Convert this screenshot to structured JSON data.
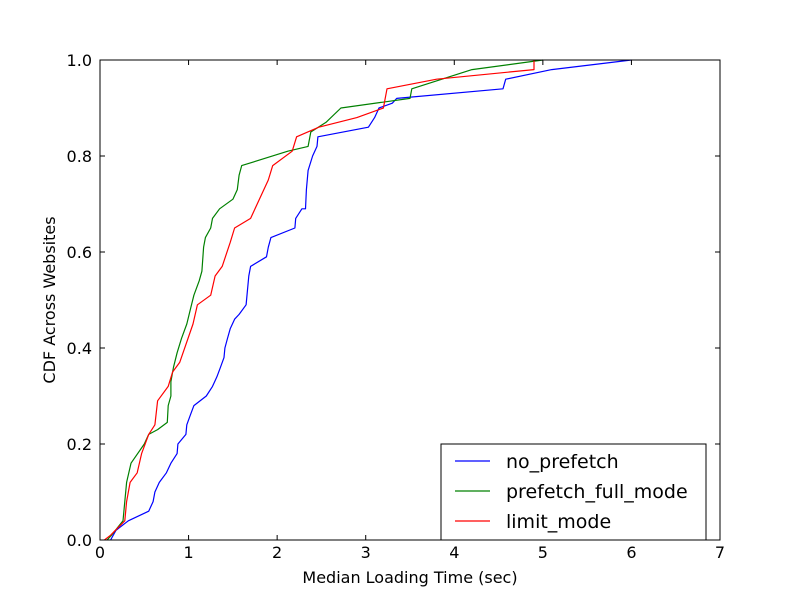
{
  "chart_data": {
    "type": "line",
    "title": "",
    "xlabel": "Median Loading Time (sec)",
    "ylabel": "CDF Across Websites",
    "xlim": [
      0,
      7
    ],
    "ylim": [
      0,
      1.0
    ],
    "xticks": [
      "0",
      "1",
      "2",
      "3",
      "4",
      "5",
      "6",
      "7"
    ],
    "yticks": [
      "0.0",
      "0.2",
      "0.4",
      "0.6",
      "0.8",
      "1.0"
    ],
    "grid": false,
    "legend_position": "lower-right",
    "series": [
      {
        "name": "no_prefetch",
        "color": "#0000ff",
        "points": [
          [
            0.12,
            0
          ],
          [
            0.18,
            0.02
          ],
          [
            0.32,
            0.04
          ],
          [
            0.55,
            0.06
          ],
          [
            0.6,
            0.08
          ],
          [
            0.62,
            0.1
          ],
          [
            0.67,
            0.12
          ],
          [
            0.75,
            0.14
          ],
          [
            0.8,
            0.16
          ],
          [
            0.87,
            0.18
          ],
          [
            0.88,
            0.2
          ],
          [
            0.97,
            0.22
          ],
          [
            0.98,
            0.24
          ],
          [
            1.02,
            0.26
          ],
          [
            1.06,
            0.28
          ],
          [
            1.2,
            0.3
          ],
          [
            1.27,
            0.32
          ],
          [
            1.32,
            0.34
          ],
          [
            1.36,
            0.36
          ],
          [
            1.4,
            0.38
          ],
          [
            1.41,
            0.4
          ],
          [
            1.44,
            0.42
          ],
          [
            1.47,
            0.44
          ],
          [
            1.52,
            0.46
          ],
          [
            1.57,
            0.47
          ],
          [
            1.65,
            0.49
          ],
          [
            1.66,
            0.51
          ],
          [
            1.68,
            0.55
          ],
          [
            1.7,
            0.57
          ],
          [
            1.88,
            0.59
          ],
          [
            1.9,
            0.61
          ],
          [
            1.93,
            0.63
          ],
          [
            2.2,
            0.65
          ],
          [
            2.21,
            0.67
          ],
          [
            2.28,
            0.69
          ],
          [
            2.32,
            0.69
          ],
          [
            2.33,
            0.73
          ],
          [
            2.35,
            0.77
          ],
          [
            2.4,
            0.8
          ],
          [
            2.45,
            0.82
          ],
          [
            2.46,
            0.84
          ],
          [
            3.03,
            0.86
          ],
          [
            3.1,
            0.88
          ],
          [
            3.15,
            0.9
          ],
          [
            3.3,
            0.91
          ],
          [
            3.35,
            0.92
          ],
          [
            4.55,
            0.94
          ],
          [
            4.58,
            0.96
          ],
          [
            5.1,
            0.98
          ],
          [
            6.0,
            1.0
          ]
        ]
      },
      {
        "name": "prefetch_full_mode",
        "color": "#008000",
        "points": [
          [
            0.08,
            0
          ],
          [
            0.13,
            0.01
          ],
          [
            0.26,
            0.04
          ],
          [
            0.28,
            0.08
          ],
          [
            0.3,
            0.12
          ],
          [
            0.35,
            0.16
          ],
          [
            0.5,
            0.2
          ],
          [
            0.55,
            0.22
          ],
          [
            0.65,
            0.23
          ],
          [
            0.76,
            0.245
          ],
          [
            0.77,
            0.28
          ],
          [
            0.8,
            0.3
          ],
          [
            0.8,
            0.33
          ],
          [
            0.83,
            0.36
          ],
          [
            0.87,
            0.39
          ],
          [
            0.92,
            0.42
          ],
          [
            0.98,
            0.45
          ],
          [
            1.02,
            0.48
          ],
          [
            1.06,
            0.51
          ],
          [
            1.12,
            0.54
          ],
          [
            1.15,
            0.56
          ],
          [
            1.17,
            0.61
          ],
          [
            1.19,
            0.63
          ],
          [
            1.25,
            0.65
          ],
          [
            1.27,
            0.67
          ],
          [
            1.35,
            0.69
          ],
          [
            1.5,
            0.71
          ],
          [
            1.55,
            0.73
          ],
          [
            1.57,
            0.76
          ],
          [
            1.6,
            0.78
          ],
          [
            2.12,
            0.81
          ],
          [
            2.35,
            0.82
          ],
          [
            2.38,
            0.85
          ],
          [
            2.55,
            0.87
          ],
          [
            2.72,
            0.9
          ],
          [
            3.5,
            0.92
          ],
          [
            3.52,
            0.94
          ],
          [
            4.2,
            0.98
          ],
          [
            5.0,
            1.0
          ]
        ]
      },
      {
        "name": "limit_mode",
        "color": "#ff0000",
        "points": [
          [
            0.05,
            0
          ],
          [
            0.12,
            0.01
          ],
          [
            0.28,
            0.04
          ],
          [
            0.3,
            0.08
          ],
          [
            0.34,
            0.12
          ],
          [
            0.42,
            0.14
          ],
          [
            0.47,
            0.18
          ],
          [
            0.55,
            0.22
          ],
          [
            0.62,
            0.24
          ],
          [
            0.65,
            0.29
          ],
          [
            0.77,
            0.32
          ],
          [
            0.82,
            0.35
          ],
          [
            0.9,
            0.37
          ],
          [
            1.05,
            0.45
          ],
          [
            1.1,
            0.49
          ],
          [
            1.25,
            0.51
          ],
          [
            1.3,
            0.55
          ],
          [
            1.38,
            0.57
          ],
          [
            1.47,
            0.62
          ],
          [
            1.52,
            0.65
          ],
          [
            1.7,
            0.67
          ],
          [
            1.8,
            0.71
          ],
          [
            1.9,
            0.75
          ],
          [
            1.95,
            0.78
          ],
          [
            2.17,
            0.81
          ],
          [
            2.22,
            0.84
          ],
          [
            2.47,
            0.86
          ],
          [
            2.9,
            0.88
          ],
          [
            3.2,
            0.9
          ],
          [
            3.24,
            0.94
          ],
          [
            3.8,
            0.96
          ],
          [
            4.9,
            0.98
          ],
          [
            4.9,
            1.0
          ]
        ]
      }
    ]
  }
}
